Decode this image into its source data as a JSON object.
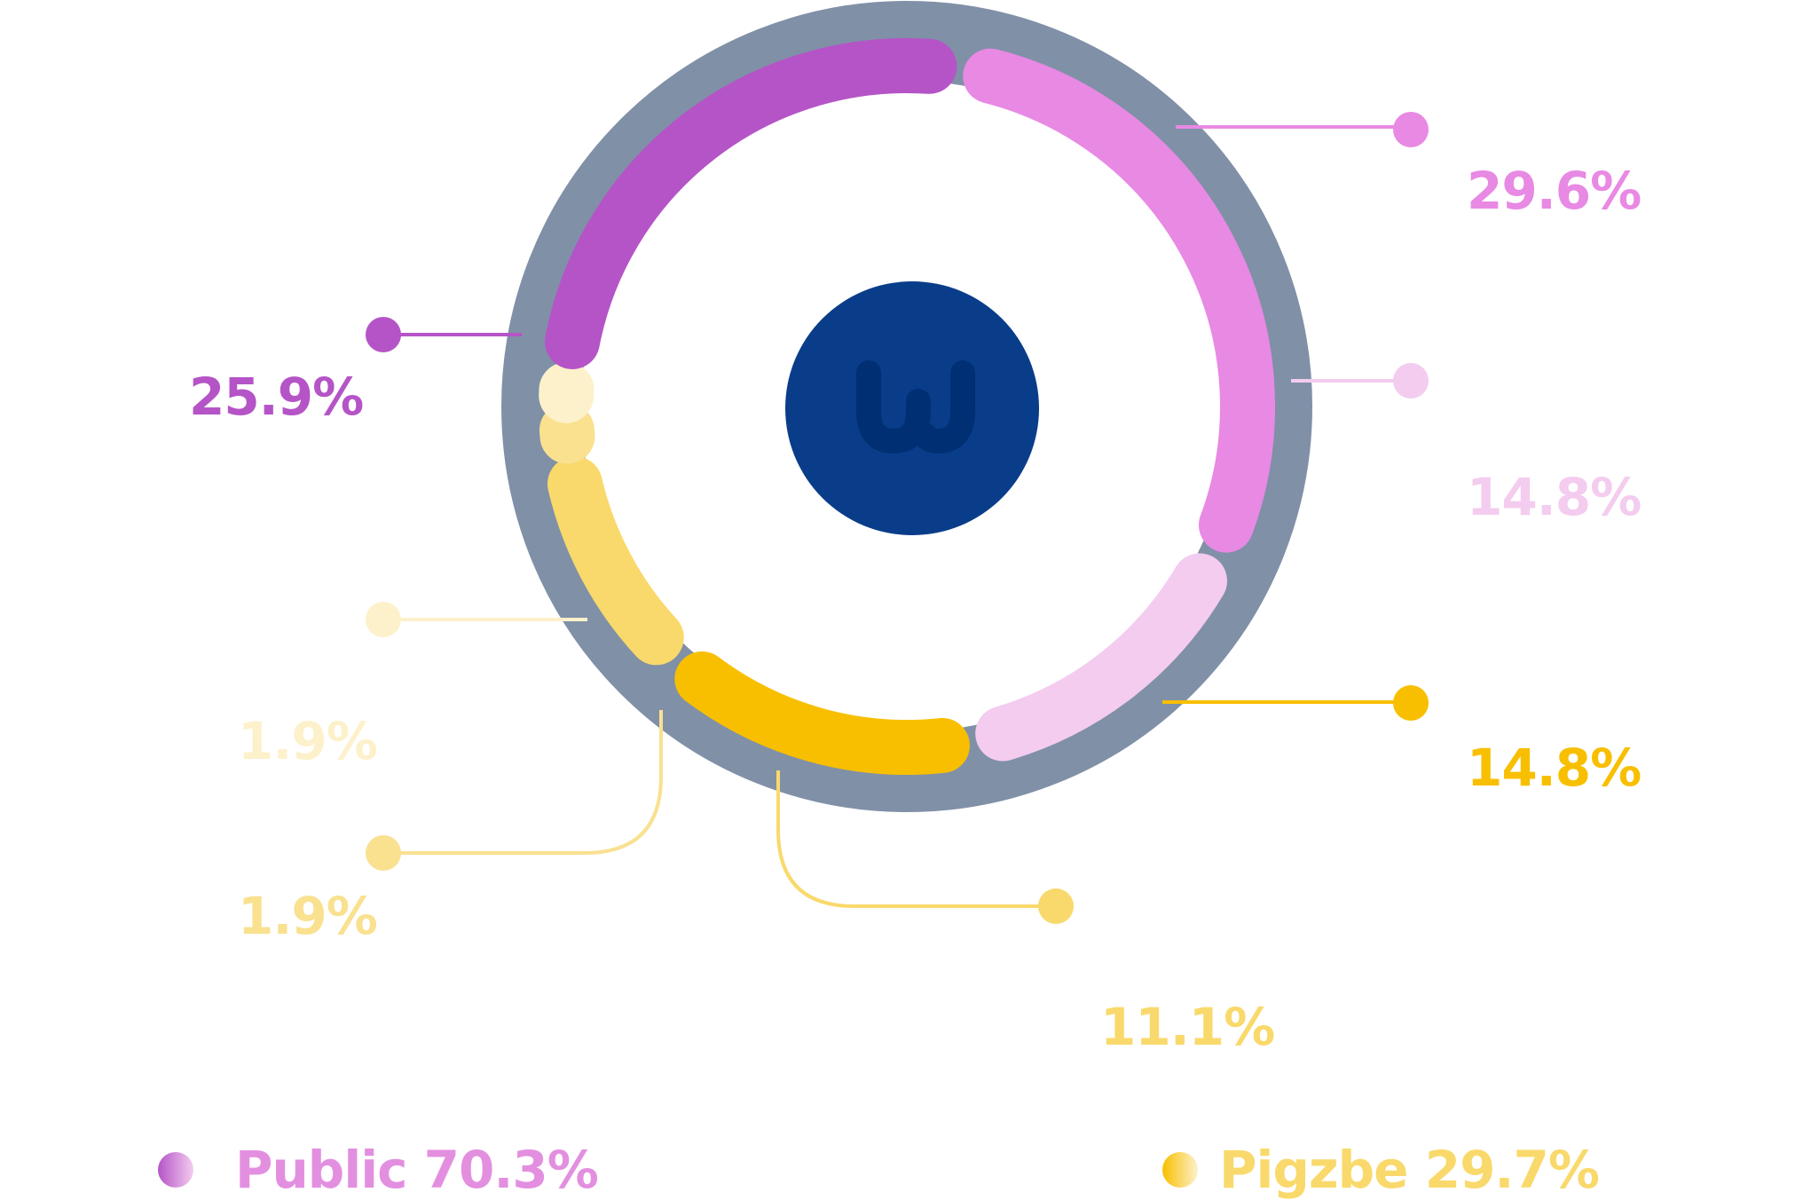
{
  "chart_data": {
    "type": "donut",
    "center_icon": "wj-logo-icon",
    "segments": [
      {
        "label": "29.6%",
        "value": 29.6,
        "color": "#E889E4",
        "group": "Public"
      },
      {
        "label": "14.8%",
        "value": 14.8,
        "color": "#F3CCEF",
        "group": "Public"
      },
      {
        "label": "14.8%",
        "value": 14.8,
        "color": "#F8BF00",
        "group": "Pigzbe"
      },
      {
        "label": "11.1%",
        "value": 11.1,
        "color": "#F9D96B",
        "group": "Pigzbe"
      },
      {
        "label": "1.9%",
        "value": 1.9,
        "color": "#F9E190",
        "group": "Pigzbe"
      },
      {
        "label": "1.9%",
        "value": 1.9,
        "color": "#FDF1CB",
        "group": "Pigzbe"
      },
      {
        "label": "25.9%",
        "value": 25.9,
        "color": "#B554C7",
        "group": "Public"
      }
    ],
    "legend": [
      {
        "label": "Public 70.3%",
        "color": "#E38FE0",
        "gradient": [
          "#B554C7",
          "#F3CCEF"
        ]
      },
      {
        "label": "Pigzbe 29.7%",
        "color": "#F9D96B",
        "gradient": [
          "#F8BF00",
          "#FDF1CB"
        ]
      }
    ]
  },
  "colors": {
    "ring": "#8090A7",
    "center": "#093D8A",
    "logo": "#002F73"
  }
}
